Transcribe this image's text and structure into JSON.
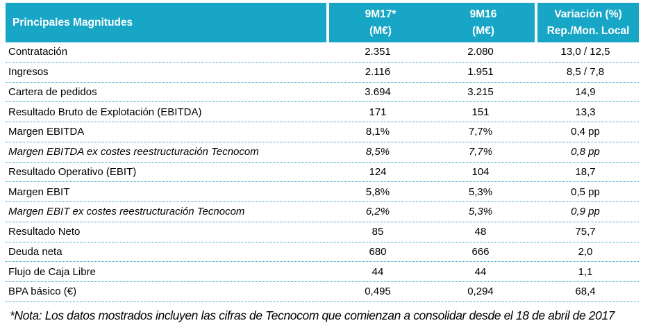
{
  "table": {
    "header": {
      "label": "Principales Magnitudes",
      "col_9m17_line1": "9M17*",
      "col_9m17_line2": "(M€)",
      "col_9m16_line1": "9M16",
      "col_9m16_line2": "(M€)",
      "col_var_line1": "Variación (%)",
      "col_var_line2": "Rep./Mon. Local"
    },
    "rows": [
      {
        "label": "Contratación",
        "v_9m17": "2.351",
        "v_9m16": "2.080",
        "v_var": "13,0 / 12,5",
        "italic": false
      },
      {
        "label": "Ingresos",
        "v_9m17": "2.116",
        "v_9m16": "1.951",
        "v_var": "8,5 / 7,8",
        "italic": false
      },
      {
        "label": "Cartera de pedidos",
        "v_9m17": "3.694",
        "v_9m16": "3.215",
        "v_var": "14,9",
        "italic": false
      },
      {
        "label": "Resultado Bruto de Explotación (EBITDA)",
        "v_9m17": "171",
        "v_9m16": "151",
        "v_var": "13,3",
        "italic": false
      },
      {
        "label": "Margen EBITDA",
        "v_9m17": "8,1%",
        "v_9m16": "7,7%",
        "v_var": "0,4 pp",
        "italic": false
      },
      {
        "label": "Margen EBITDA ex costes reestructuración Tecnocom",
        "v_9m17": "8,5%",
        "v_9m16": "7,7%",
        "v_var": "0,8 pp",
        "italic": true
      },
      {
        "label": "Resultado Operativo (EBIT)",
        "v_9m17": "124",
        "v_9m16": "104",
        "v_var": "18,7",
        "italic": false
      },
      {
        "label": "Margen EBIT",
        "v_9m17": "5,8%",
        "v_9m16": "5,3%",
        "v_var": "0,5 pp",
        "italic": false
      },
      {
        "label": "Margen EBIT ex costes reestructuración Tecnocom",
        "v_9m17": "6,2%",
        "v_9m16": "5,3%",
        "v_var": "0,9 pp",
        "italic": true
      },
      {
        "label": "Resultado Neto",
        "v_9m17": "85",
        "v_9m16": "48",
        "v_var": "75,7",
        "italic": false
      },
      {
        "label": "Deuda neta",
        "v_9m17": "680",
        "v_9m16": "666",
        "v_var": "2,0",
        "italic": false
      },
      {
        "label": "Flujo de Caja Libre",
        "v_9m17": "44",
        "v_9m16": "44",
        "v_var": "1,1",
        "italic": false
      },
      {
        "label": "BPA básico (€)",
        "v_9m17": "0,495",
        "v_9m16": "0,294",
        "v_var": "68,4",
        "italic": false
      }
    ]
  },
  "footnote": "*Nota: Los datos mostrados incluyen las cifras de Tecnocom que comienzan a consolidar desde el 18 de abril de 2017",
  "colors": {
    "header_bg": "#18A6C6",
    "header_text": "#FFFFFF",
    "row_separator": "#1E9EC0",
    "body_text": "#000000",
    "background": "#FFFFFF"
  }
}
